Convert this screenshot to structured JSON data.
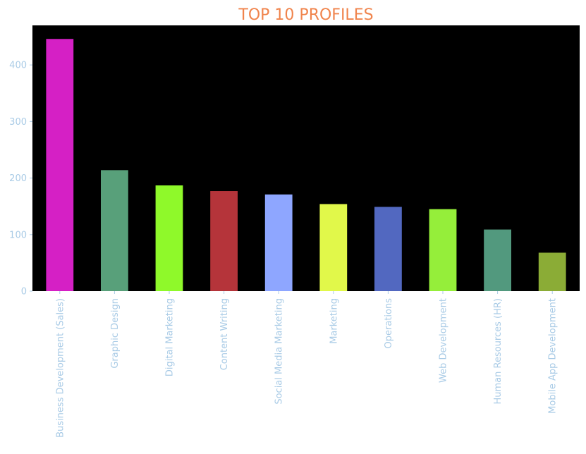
{
  "chart_data": {
    "type": "bar",
    "title": "TOP 10 PROFILES",
    "xlabel": "",
    "ylabel": "",
    "categories": [
      "Business Development (Sales)",
      "Graphic Design",
      "Digital Marketing",
      "Content Writing",
      "Social Media Marketing",
      "Marketing",
      "Operations",
      "Web Development",
      "Human Resources (HR)",
      "Mobile App Development"
    ],
    "values": [
      446,
      214,
      187,
      177,
      171,
      154,
      149,
      145,
      109,
      68
    ],
    "bar_colors": [
      "#d520c5",
      "#58a07a",
      "#8ff92a",
      "#b5343a",
      "#8ea6ff",
      "#e1f84a",
      "#5268c0",
      "#95ee3a",
      "#52997e",
      "#8bac36"
    ],
    "ylim": [
      0,
      470
    ],
    "yticks": [
      0,
      100,
      200,
      300,
      400
    ],
    "grid": false,
    "legend": "none",
    "colors": {
      "title": "#f0844c",
      "tick_labels": "#a9cbe6",
      "plot_background": "#000000",
      "page_background": "#ffffff"
    }
  }
}
